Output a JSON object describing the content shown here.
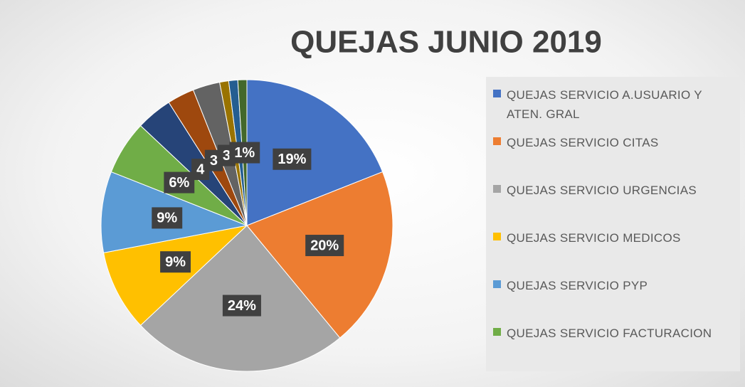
{
  "chart_data": {
    "type": "pie",
    "title": "QUEJAS JUNIO 2019",
    "categories": [
      "QUEJAS SERVICIO A.USUARIO Y ATEN. GRAL",
      "QUEJAS SERVICIO CITAS",
      "QUEJAS SERVICIO URGENCIAS",
      "QUEJAS SERVICIO MEDICOS",
      "QUEJAS SERVICIO PYP",
      "QUEJAS SERVICIO FACTURACION",
      null,
      null,
      null,
      null,
      null,
      null
    ],
    "values": [
      19,
      20,
      24,
      9,
      9,
      6,
      4,
      3,
      3,
      1,
      1,
      1
    ],
    "value_labels": [
      "19%",
      "20%",
      "24%",
      "9%",
      "9%",
      "6%",
      "4",
      "3",
      "3",
      null,
      null,
      "1%"
    ],
    "colors": [
      "#4472c4",
      "#ed7d31",
      "#a5a5a5",
      "#ffc000",
      "#5b9bd5",
      "#70ad47",
      "#264478",
      "#9e480e",
      "#636363",
      "#997300",
      "#255e91",
      "#43682b"
    ]
  }
}
